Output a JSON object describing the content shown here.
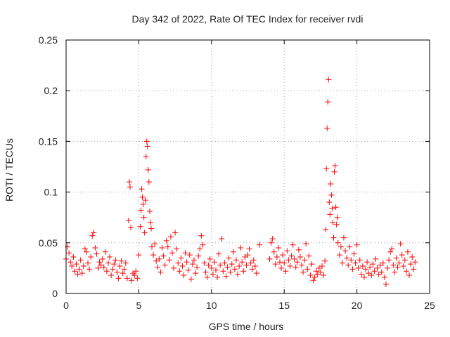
{
  "chart_data": {
    "type": "scatter",
    "title": "Day 342 of 2022, Rate Of TEC Index for receiver rvdi",
    "xlabel": "GPS time / hours",
    "ylabel": "ROTI / TECUs",
    "xlim": [
      0,
      25
    ],
    "ylim": [
      0,
      0.25
    ],
    "xticks": [
      0,
      5,
      10,
      15,
      20,
      25
    ],
    "xtick_labels": [
      "0",
      "5",
      "10",
      "15",
      "20",
      "25"
    ],
    "yticks": [
      0,
      0.05,
      0.1,
      0.15,
      0.2,
      0.25
    ],
    "ytick_labels": [
      "0",
      "0.05",
      "0.1",
      "0.15",
      "0.2",
      "0.25"
    ],
    "grid": true,
    "marker": "+",
    "series": [
      {
        "name": "ROTI",
        "color": "#ff0000",
        "points": [
          [
            0.0,
            0.034
          ],
          [
            0.1,
            0.046
          ],
          [
            0.2,
            0.04
          ],
          [
            0.3,
            0.031
          ],
          [
            0.4,
            0.027
          ],
          [
            0.5,
            0.036
          ],
          [
            0.6,
            0.022
          ],
          [
            0.7,
            0.029
          ],
          [
            0.8,
            0.019
          ],
          [
            0.9,
            0.024
          ],
          [
            1.0,
            0.033
          ],
          [
            1.1,
            0.02
          ],
          [
            1.2,
            0.027
          ],
          [
            1.3,
            0.044
          ],
          [
            1.4,
            0.041
          ],
          [
            1.5,
            0.03
          ],
          [
            1.6,
            0.024
          ],
          [
            1.7,
            0.036
          ],
          [
            1.8,
            0.057
          ],
          [
            1.9,
            0.06
          ],
          [
            2.0,
            0.045
          ],
          [
            2.1,
            0.039
          ],
          [
            2.2,
            0.025
          ],
          [
            2.3,
            0.031
          ],
          [
            2.4,
            0.028
          ],
          [
            2.5,
            0.034
          ],
          [
            2.6,
            0.026
          ],
          [
            2.7,
            0.041
          ],
          [
            2.8,
            0.022
          ],
          [
            2.9,
            0.03
          ],
          [
            3.0,
            0.036
          ],
          [
            3.1,
            0.018
          ],
          [
            3.2,
            0.024
          ],
          [
            3.3,
            0.029
          ],
          [
            3.4,
            0.033
          ],
          [
            3.5,
            0.021
          ],
          [
            3.6,
            0.015
          ],
          [
            3.7,
            0.027
          ],
          [
            3.8,
            0.032
          ],
          [
            3.9,
            0.02
          ],
          [
            4.0,
            0.024
          ],
          [
            4.1,
            0.03
          ],
          [
            4.2,
            0.015
          ],
          [
            4.3,
            0.072
          ],
          [
            4.35,
            0.11
          ],
          [
            4.4,
            0.105
          ],
          [
            4.45,
            0.065
          ],
          [
            4.5,
            0.013
          ],
          [
            4.6,
            0.02
          ],
          [
            4.7,
            0.018
          ],
          [
            4.8,
            0.022
          ],
          [
            4.9,
            0.015
          ],
          [
            5.0,
            0.038
          ],
          [
            5.1,
            0.066
          ],
          [
            5.15,
            0.082
          ],
          [
            5.2,
            0.103
          ],
          [
            5.25,
            0.095
          ],
          [
            5.3,
            0.088
          ],
          [
            5.35,
            0.075
          ],
          [
            5.4,
            0.06
          ],
          [
            5.45,
            0.092
          ],
          [
            5.5,
            0.135
          ],
          [
            5.55,
            0.15
          ],
          [
            5.6,
            0.145
          ],
          [
            5.65,
            0.122
          ],
          [
            5.7,
            0.11
          ],
          [
            5.75,
            0.081
          ],
          [
            5.8,
            0.07
          ],
          [
            5.85,
            0.064
          ],
          [
            5.9,
            0.046
          ],
          [
            6.0,
            0.038
          ],
          [
            6.1,
            0.049
          ],
          [
            6.2,
            0.032
          ],
          [
            6.3,
            0.026
          ],
          [
            6.4,
            0.034
          ],
          [
            6.5,
            0.021
          ],
          [
            6.6,
            0.045
          ],
          [
            6.7,
            0.037
          ],
          [
            6.8,
            0.028
          ],
          [
            6.9,
            0.052
          ],
          [
            7.0,
            0.046
          ],
          [
            7.1,
            0.033
          ],
          [
            7.2,
            0.056
          ],
          [
            7.3,
            0.04
          ],
          [
            7.4,
            0.025
          ],
          [
            7.5,
            0.06
          ],
          [
            7.6,
            0.044
          ],
          [
            7.7,
            0.03
          ],
          [
            7.8,
            0.022
          ],
          [
            7.9,
            0.035
          ],
          [
            8.0,
            0.027
          ],
          [
            8.1,
            0.018
          ],
          [
            8.2,
            0.04
          ],
          [
            8.3,
            0.031
          ],
          [
            8.4,
            0.023
          ],
          [
            8.5,
            0.038
          ],
          [
            8.6,
            0.014
          ],
          [
            8.7,
            0.029
          ],
          [
            8.8,
            0.033
          ],
          [
            8.9,
            0.02
          ],
          [
            9.0,
            0.026
          ],
          [
            9.1,
            0.037
          ],
          [
            9.2,
            0.044
          ],
          [
            9.3,
            0.057
          ],
          [
            9.4,
            0.048
          ],
          [
            9.5,
            0.03
          ],
          [
            9.6,
            0.021
          ],
          [
            9.7,
            0.016
          ],
          [
            9.8,
            0.028
          ],
          [
            9.9,
            0.034
          ],
          [
            10.0,
            0.025
          ],
          [
            10.1,
            0.019
          ],
          [
            10.2,
            0.031
          ],
          [
            10.3,
            0.023
          ],
          [
            10.4,
            0.016
          ],
          [
            10.5,
            0.039
          ],
          [
            10.6,
            0.028
          ],
          [
            10.7,
            0.054
          ],
          [
            10.8,
            0.022
          ],
          [
            10.9,
            0.03
          ],
          [
            11.0,
            0.017
          ],
          [
            11.1,
            0.026
          ],
          [
            11.2,
            0.035
          ],
          [
            11.3,
            0.021
          ],
          [
            11.4,
            0.029
          ],
          [
            11.5,
            0.041
          ],
          [
            11.6,
            0.024
          ],
          [
            11.7,
            0.033
          ],
          [
            11.8,
            0.019
          ],
          [
            11.9,
            0.027
          ],
          [
            12.0,
            0.045
          ],
          [
            12.1,
            0.031
          ],
          [
            12.2,
            0.022
          ],
          [
            12.3,
            0.036
          ],
          [
            12.4,
            0.028
          ],
          [
            12.5,
            0.038
          ],
          [
            12.6,
            0.044
          ],
          [
            12.7,
            0.03
          ],
          [
            12.8,
            0.024
          ],
          [
            12.9,
            0.033
          ],
          [
            13.0,
            0.027
          ],
          [
            13.1,
            0.02
          ],
          [
            13.3,
            0.048
          ],
          [
            14.0,
            0.034
          ],
          [
            14.1,
            0.05
          ],
          [
            14.2,
            0.054
          ],
          [
            14.3,
            0.041
          ],
          [
            14.4,
            0.029
          ],
          [
            14.5,
            0.036
          ],
          [
            14.6,
            0.045
          ],
          [
            14.7,
            0.031
          ],
          [
            14.8,
            0.025
          ],
          [
            14.9,
            0.038
          ],
          [
            15.0,
            0.03
          ],
          [
            15.1,
            0.022
          ],
          [
            15.2,
            0.042
          ],
          [
            15.3,
            0.033
          ],
          [
            15.4,
            0.027
          ],
          [
            15.5,
            0.037
          ],
          [
            15.6,
            0.048
          ],
          [
            15.7,
            0.034
          ],
          [
            15.8,
            0.026
          ],
          [
            15.9,
            0.031
          ],
          [
            16.0,
            0.043
          ],
          [
            16.1,
            0.036
          ],
          [
            16.2,
            0.028
          ],
          [
            16.3,
            0.021
          ],
          [
            16.4,
            0.033
          ],
          [
            16.5,
            0.049
          ],
          [
            16.6,
            0.024
          ],
          [
            16.7,
            0.037
          ],
          [
            16.8,
            0.018
          ],
          [
            16.9,
            0.029
          ],
          [
            17.0,
            0.013
          ],
          [
            17.1,
            0.016
          ],
          [
            17.2,
            0.022
          ],
          [
            17.3,
            0.019
          ],
          [
            17.4,
            0.025
          ],
          [
            17.5,
            0.021
          ],
          [
            17.6,
            0.027
          ],
          [
            17.7,
            0.018
          ],
          [
            17.8,
            0.032
          ],
          [
            17.85,
            0.063
          ],
          [
            17.9,
            0.123
          ],
          [
            17.95,
            0.163
          ],
          [
            18.0,
            0.189
          ],
          [
            18.05,
            0.211
          ],
          [
            18.1,
            0.09
          ],
          [
            18.15,
            0.078
          ],
          [
            18.2,
            0.108
          ],
          [
            18.25,
            0.097
          ],
          [
            18.3,
            0.084
          ],
          [
            18.35,
            0.07
          ],
          [
            18.4,
            0.055
          ],
          [
            18.45,
            0.12
          ],
          [
            18.5,
            0.126
          ],
          [
            18.55,
            0.085
          ],
          [
            18.6,
            0.068
          ],
          [
            18.65,
            0.075
          ],
          [
            18.7,
            0.05
          ],
          [
            18.8,
            0.038
          ],
          [
            18.9,
            0.046
          ],
          [
            19.0,
            0.03
          ],
          [
            19.1,
            0.055
          ],
          [
            19.2,
            0.042
          ],
          [
            19.3,
            0.035
          ],
          [
            19.4,
            0.028
          ],
          [
            19.5,
            0.046
          ],
          [
            19.6,
            0.033
          ],
          [
            19.7,
            0.024
          ],
          [
            19.8,
            0.039
          ],
          [
            19.9,
            0.03
          ],
          [
            20.0,
            0.048
          ],
          [
            20.1,
            0.025
          ],
          [
            20.2,
            0.033
          ],
          [
            20.3,
            0.019
          ],
          [
            20.4,
            0.027
          ],
          [
            20.5,
            0.016
          ],
          [
            20.6,
            0.024
          ],
          [
            20.7,
            0.031
          ],
          [
            20.8,
            0.02
          ],
          [
            20.9,
            0.026
          ],
          [
            21.0,
            0.018
          ],
          [
            21.1,
            0.029
          ],
          [
            21.2,
            0.022
          ],
          [
            21.3,
            0.034
          ],
          [
            21.4,
            0.025
          ],
          [
            21.5,
            0.019
          ],
          [
            21.6,
            0.028
          ],
          [
            21.7,
            0.021
          ],
          [
            21.8,
            0.03
          ],
          [
            21.9,
            0.016
          ],
          [
            22.0,
            0.009
          ],
          [
            22.1,
            0.025
          ],
          [
            22.2,
            0.033
          ],
          [
            22.3,
            0.041
          ],
          [
            22.4,
            0.044
          ],
          [
            22.5,
            0.028
          ],
          [
            22.6,
            0.021
          ],
          [
            22.7,
            0.035
          ],
          [
            22.8,
            0.026
          ],
          [
            22.9,
            0.03
          ],
          [
            23.0,
            0.049
          ],
          [
            23.1,
            0.038
          ],
          [
            23.2,
            0.027
          ],
          [
            23.3,
            0.033
          ],
          [
            23.4,
            0.022
          ],
          [
            23.5,
            0.041
          ],
          [
            23.6,
            0.018
          ],
          [
            23.7,
            0.029
          ],
          [
            23.8,
            0.036
          ],
          [
            23.9,
            0.024
          ],
          [
            24.0,
            0.031
          ]
        ]
      }
    ]
  }
}
